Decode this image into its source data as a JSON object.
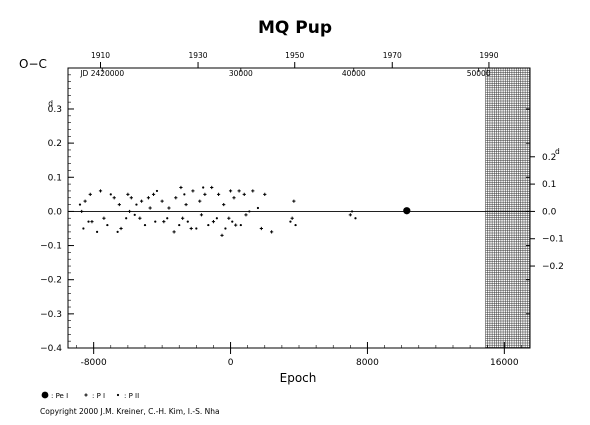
{
  "chart_data": {
    "type": "scatter",
    "title": "MQ Pup",
    "xlabel": "Epoch",
    "ylabel": "O−C",
    "xlim": [
      -9500,
      17500
    ],
    "ylim": [
      -0.4,
      0.42
    ],
    "x_ticks": [
      -8000,
      0,
      8000,
      16000
    ],
    "y_ticks": [
      -0.4,
      -0.3,
      -0.2,
      -0.1,
      0.0,
      0.1,
      0.2,
      0.3
    ],
    "y_tick_labels": [
      "−0.4",
      "−0.3",
      "−0.2",
      "−0.1",
      "0.0",
      "0.1",
      "0.2",
      "0.3"
    ],
    "y_top_label_superscript": "d",
    "right_ticks": [
      -0.2,
      -0.1,
      0.0,
      0.1,
      0.2
    ],
    "right_tick_labels": [
      "−0.2",
      "−0.1",
      "0.0",
      "0.1",
      "0.2"
    ],
    "right_top_label_superscript": "d",
    "year_ticks": [
      1910,
      1930,
      1950,
      1970,
      1990
    ],
    "year_tick_epochs": [
      -7600,
      -1900,
      3750,
      9450,
      15100
    ],
    "jd_labels": [
      "JD 2420000",
      "30000",
      "40000",
      "50000"
    ],
    "jd_label_epochs": [
      -7500,
      600,
      7200,
      14500
    ],
    "hatched_region_start": 14900,
    "grid": false,
    "series": [
      {
        "name": ": Pe I",
        "marker": "filled-circle-large",
        "points": [
          [
            10300,
            0.002
          ]
        ]
      },
      {
        "name": ": P I",
        "marker": "plus",
        "points": [
          [
            -8500,
            0.03
          ],
          [
            -8200,
            0.05
          ],
          [
            -7600,
            0.06
          ],
          [
            -6800,
            0.04
          ],
          [
            -6500,
            0.02
          ],
          [
            -6000,
            0.05
          ],
          [
            -5800,
            0.04
          ],
          [
            -5200,
            0.03
          ],
          [
            -4800,
            0.04
          ],
          [
            -4500,
            0.05
          ],
          [
            -4000,
            0.03
          ],
          [
            -3600,
            0.01
          ],
          [
            -3200,
            0.04
          ],
          [
            -2900,
            0.07
          ],
          [
            -2600,
            0.02
          ],
          [
            -2200,
            0.06
          ],
          [
            -1800,
            0.03
          ],
          [
            -1500,
            0.05
          ],
          [
            -1100,
            0.07
          ],
          [
            -700,
            0.05
          ],
          [
            -400,
            0.02
          ],
          [
            0,
            0.06
          ],
          [
            200,
            0.04
          ],
          [
            500,
            0.06
          ],
          [
            800,
            0.05
          ],
          [
            1300,
            0.06
          ],
          [
            2000,
            0.05
          ],
          [
            3700,
            0.03
          ],
          [
            -8700,
            0.0
          ],
          [
            -8100,
            -0.03
          ],
          [
            -7400,
            -0.02
          ],
          [
            -6400,
            -0.05
          ],
          [
            -5900,
            0.0
          ],
          [
            -5300,
            -0.02
          ],
          [
            -4700,
            0.01
          ],
          [
            -3900,
            -0.03
          ],
          [
            -3300,
            -0.06
          ],
          [
            -2800,
            -0.02
          ],
          [
            -2300,
            -0.05
          ],
          [
            -1700,
            -0.01
          ],
          [
            -1000,
            -0.03
          ],
          [
            -500,
            -0.07
          ],
          [
            -100,
            -0.02
          ],
          [
            300,
            -0.04
          ],
          [
            900,
            -0.01
          ],
          [
            1800,
            -0.05
          ],
          [
            2400,
            -0.06
          ],
          [
            3600,
            -0.02
          ],
          [
            7000,
            -0.01
          ]
        ]
      },
      {
        "name": ": P II",
        "marker": "dot",
        "points": [
          [
            -8600,
            -0.05
          ],
          [
            -8300,
            -0.03
          ],
          [
            -7800,
            -0.06
          ],
          [
            -7200,
            -0.04
          ],
          [
            -6600,
            -0.06
          ],
          [
            -6100,
            -0.02
          ],
          [
            -5600,
            -0.01
          ],
          [
            -5000,
            -0.04
          ],
          [
            -4400,
            -0.03
          ],
          [
            -3700,
            -0.02
          ],
          [
            -3000,
            -0.04
          ],
          [
            -2500,
            -0.03
          ],
          [
            -2000,
            -0.05
          ],
          [
            -1300,
            -0.04
          ],
          [
            -800,
            -0.02
          ],
          [
            -300,
            -0.05
          ],
          [
            100,
            -0.03
          ],
          [
            600,
            -0.04
          ],
          [
            1100,
            0.0
          ],
          [
            1600,
            0.01
          ],
          [
            3500,
            -0.03
          ],
          [
            3800,
            -0.04
          ],
          [
            7100,
            0.0
          ],
          [
            7300,
            -0.02
          ],
          [
            -8800,
            0.02
          ],
          [
            -7000,
            0.05
          ],
          [
            -5500,
            0.02
          ],
          [
            -4300,
            0.06
          ],
          [
            -2700,
            0.05
          ],
          [
            -1600,
            0.07
          ]
        ]
      }
    ],
    "legend_position": "bottom-left"
  },
  "footer": {
    "copyright": "Copyright 2000 J.M. Kreiner, C.-H. Kim, I.-S. Nha"
  }
}
